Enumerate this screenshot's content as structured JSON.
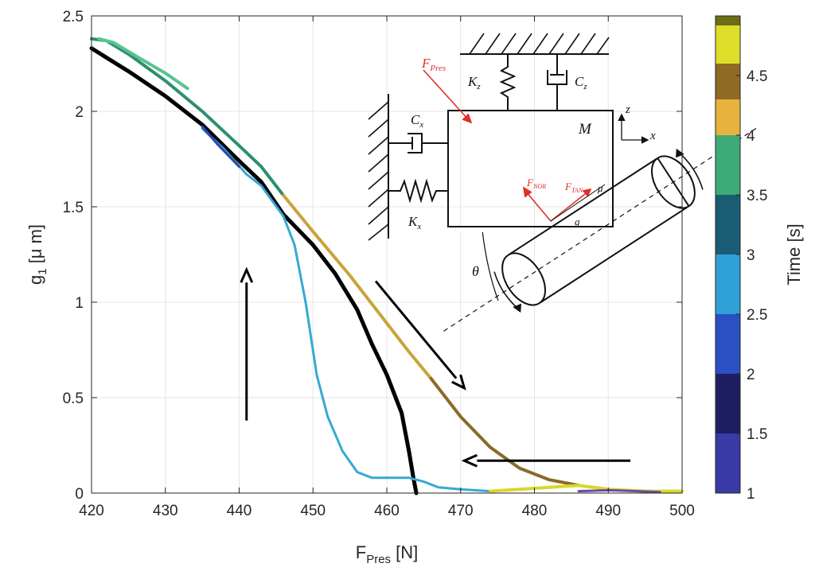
{
  "chart_data": {
    "type": "line",
    "xlabel": "F",
    "xlabel_sub": "Pres",
    "xlabel_unit": " [N]",
    "ylabel": "g",
    "ylabel_sub": "1",
    "ylabel_unit": " [μ m]",
    "xlim": [
      420,
      500
    ],
    "ylim": [
      0,
      2.5
    ],
    "x_ticks": [
      420,
      430,
      440,
      450,
      460,
      470,
      480,
      490,
      500
    ],
    "y_ticks": [
      0,
      0.5,
      1,
      1.5,
      2,
      2.5
    ],
    "y_tick_labels": [
      "0",
      "0.5",
      "1",
      "1.5",
      "2",
      "2.5"
    ],
    "grid": true,
    "colorbar": {
      "label": "Time [s]",
      "min": 1,
      "max": 5,
      "ticks": [
        1,
        1.5,
        2,
        2.5,
        3,
        3.5,
        4,
        4.5
      ],
      "tick_labels": [
        "1",
        "1.5",
        "2",
        "2.5",
        "3",
        "3.5",
        "4",
        "4.5"
      ],
      "segments": [
        {
          "from": 1.0,
          "to": 1.5,
          "color": "#3a3aa8"
        },
        {
          "from": 1.5,
          "to": 2.0,
          "color": "#1e1e60"
        },
        {
          "from": 2.0,
          "to": 2.5,
          "color": "#2a50c4"
        },
        {
          "from": 2.5,
          "to": 3.0,
          "color": "#30a0d8"
        },
        {
          "from": 3.0,
          "to": 3.5,
          "color": "#1a5c74"
        },
        {
          "from": 3.5,
          "to": 4.0,
          "color": "#3dab77"
        },
        {
          "from": 4.0,
          "to": 4.3,
          "color": "#e7b23e"
        },
        {
          "from": 4.3,
          "to": 4.6,
          "color": "#8f6a22"
        },
        {
          "from": 4.6,
          "to": 5.0,
          "color": "#dede2a"
        }
      ],
      "top_color": "#6d6d14"
    },
    "series": [
      {
        "color": "#000000",
        "width": 5,
        "points": [
          [
            420,
            2.33
          ],
          [
            425,
            2.21
          ],
          [
            430,
            2.08
          ],
          [
            435,
            1.93
          ],
          [
            440,
            1.74
          ],
          [
            443,
            1.63
          ],
          [
            446,
            1.46
          ],
          [
            450,
            1.3
          ],
          [
            453,
            1.15
          ],
          [
            456,
            0.96
          ],
          [
            458,
            0.78
          ],
          [
            460,
            0.62
          ],
          [
            462,
            0.42
          ],
          [
            463,
            0.22
          ],
          [
            463.6,
            0.08
          ],
          [
            464,
            0
          ]
        ]
      },
      {
        "color": "#35a9d4",
        "width": 3,
        "points": [
          [
            435,
            1.91
          ],
          [
            438,
            1.8
          ],
          [
            441,
            1.67
          ],
          [
            443,
            1.61
          ],
          [
            446,
            1.45
          ],
          [
            447.5,
            1.3
          ],
          [
            449,
            1.0
          ],
          [
            450.5,
            0.62
          ],
          [
            452,
            0.4
          ],
          [
            454,
            0.22
          ],
          [
            456,
            0.11
          ],
          [
            458,
            0.08
          ],
          [
            461,
            0.08
          ],
          [
            463,
            0.08
          ],
          [
            465,
            0.06
          ],
          [
            467,
            0.03
          ],
          [
            470,
            0.02
          ],
          [
            474,
            0.01
          ]
        ]
      },
      {
        "color": "#2848b8",
        "width": 3,
        "points": [
          [
            435,
            1.92
          ],
          [
            437,
            1.83
          ],
          [
            440,
            1.71
          ]
        ]
      },
      {
        "color": "#2d8f70",
        "width": 4,
        "points": [
          [
            420,
            2.38
          ],
          [
            422,
            2.37
          ],
          [
            425,
            2.3
          ],
          [
            430,
            2.16
          ],
          [
            435,
            2.0
          ],
          [
            440,
            1.82
          ],
          [
            443,
            1.71
          ],
          [
            446,
            1.56
          ]
        ]
      },
      {
        "color": "#58c490",
        "width": 4,
        "points": [
          [
            421,
            2.38
          ],
          [
            423,
            2.36
          ],
          [
            426,
            2.29
          ],
          [
            430,
            2.2
          ],
          [
            433,
            2.12
          ]
        ]
      },
      {
        "color": "#c9a43a",
        "width": 4,
        "points": [
          [
            446,
            1.56
          ],
          [
            450,
            1.37
          ],
          [
            455,
            1.14
          ],
          [
            460,
            0.89
          ],
          [
            463,
            0.74
          ],
          [
            466,
            0.6
          ]
        ]
      },
      {
        "color": "#8a6a2a",
        "width": 4,
        "points": [
          [
            466,
            0.6
          ],
          [
            470,
            0.4
          ],
          [
            474,
            0.24
          ],
          [
            478,
            0.13
          ],
          [
            482,
            0.07
          ],
          [
            486,
            0.04
          ]
        ]
      },
      {
        "color": "#d8d82a",
        "width": 4,
        "points": [
          [
            474,
            0.01
          ],
          [
            478,
            0.02
          ],
          [
            482,
            0.03
          ],
          [
            486,
            0.04
          ],
          [
            490,
            0.02
          ],
          [
            495,
            0.01
          ],
          [
            500,
            0.01
          ]
        ]
      },
      {
        "color": "#6a4aa0",
        "width": 3,
        "points": [
          [
            486,
            0.01
          ],
          [
            490,
            0.015
          ],
          [
            494,
            0.01
          ],
          [
            497,
            0.005
          ]
        ]
      }
    ],
    "arrows": [
      {
        "from": [
          441,
          0.38
        ],
        "to": [
          441,
          1.17
        ]
      },
      {
        "from": [
          458.5,
          1.11
        ],
        "to": [
          470.5,
          0.55
        ]
      },
      {
        "from": [
          493,
          0.17
        ],
        "to": [
          470.5,
          0.17
        ]
      }
    ]
  },
  "inset": {
    "f_pres_label": "F",
    "f_pres_sub": "Pres",
    "kz_label": "K",
    "kz_sub": "z",
    "cz_label": "C",
    "cz_sub": "z",
    "cx_label": "C",
    "cx_sub": "x",
    "kx_label": "K",
    "kx_sub": "x",
    "mass_label": "M",
    "z_axis_label": "z",
    "x_axis_label": "x",
    "f_nor_label": "F",
    "f_nor_sub": "NOR",
    "f_tan_label": "F",
    "f_tan_sub": "TAN",
    "mu_label": "μ",
    "g_label": "g",
    "theta_label": "θ"
  }
}
